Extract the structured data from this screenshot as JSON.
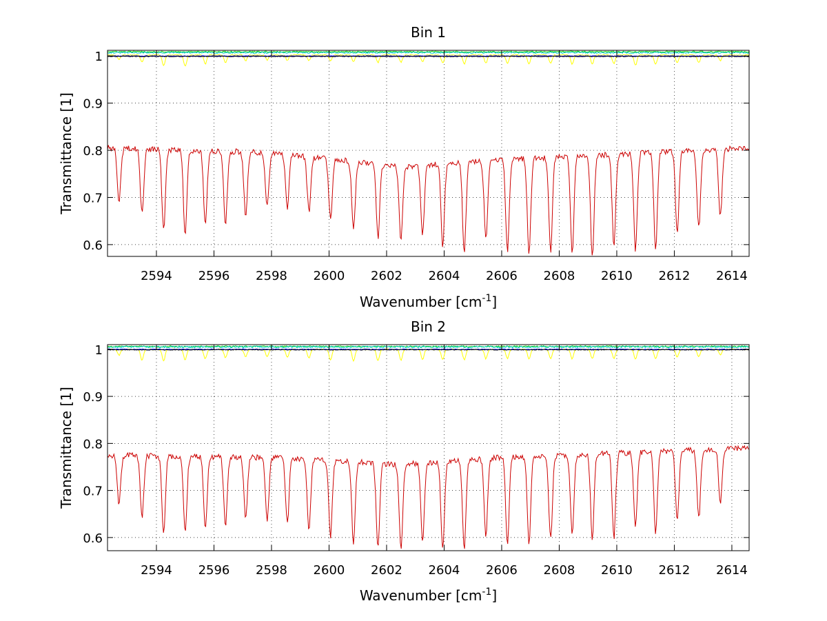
{
  "chart_data": [
    {
      "type": "line",
      "title": "Bin 1",
      "xlabel": "Wavenumber [cm",
      "xlabel_sup": "-1",
      "xlabel_end": "]",
      "ylabel": "Transmittance [1]",
      "xlim": [
        2592.3,
        2614.6
      ],
      "ylim": [
        0.575,
        1.012
      ],
      "grid": true,
      "xticks": [
        2594,
        2596,
        2598,
        2600,
        2602,
        2604,
        2606,
        2608,
        2610,
        2612,
        2614
      ],
      "xtick_labels": [
        "2594",
        "2596",
        "2598",
        "2600",
        "2602",
        "2604",
        "2606",
        "2608",
        "2610",
        "2612",
        "2614"
      ],
      "yticks": [
        0.6,
        0.7,
        0.8,
        0.9,
        1.0
      ],
      "ytick_labels": [
        "0.6",
        "0.7",
        "0.8",
        "0.9",
        "1"
      ],
      "series": [
        {
          "name": "red",
          "color": "#cc0000",
          "baseline_start": 0.805,
          "baseline_end": 0.805,
          "baseline_x": [
            2592.3,
            2598,
            2602.5,
            2606,
            2614.6
          ],
          "baseline_y": [
            0.805,
            0.795,
            0.765,
            0.78,
            0.805
          ],
          "line_centers": [
            2592.7,
            2593.5,
            2594.25,
            2595.0,
            2595.7,
            2596.4,
            2597.1,
            2597.85,
            2598.55,
            2599.3,
            2600.05,
            2600.85,
            2601.7,
            2602.5,
            2603.25,
            2603.95,
            2604.7,
            2605.45,
            2606.2,
            2606.95,
            2607.7,
            2608.45,
            2609.15,
            2609.9,
            2610.65,
            2611.35,
            2612.1,
            2612.85,
            2613.6
          ],
          "line_minima": [
            0.69,
            0.665,
            0.63,
            0.62,
            0.64,
            0.64,
            0.66,
            0.68,
            0.68,
            0.67,
            0.655,
            0.635,
            0.615,
            0.61,
            0.625,
            0.6,
            0.585,
            0.61,
            0.585,
            0.58,
            0.585,
            0.58,
            0.575,
            0.6,
            0.59,
            0.59,
            0.625,
            0.635,
            0.66
          ]
        },
        {
          "name": "yellow",
          "color": "#ffff00",
          "level": 1.002,
          "line_centers": [
            2592.7,
            2593.5,
            2594.25,
            2595.0,
            2595.7,
            2596.4,
            2597.1,
            2597.85,
            2598.55,
            2599.3,
            2600.05,
            2600.85,
            2601.7,
            2602.5,
            2603.25,
            2603.95,
            2604.7,
            2605.45,
            2606.2,
            2606.95,
            2607.7,
            2608.45,
            2609.15,
            2609.9,
            2610.65,
            2611.35,
            2612.1,
            2612.85,
            2613.6
          ],
          "line_minima": [
            0.993,
            0.988,
            0.98,
            0.978,
            0.983,
            0.986,
            0.99,
            0.991,
            0.99,
            0.99,
            0.989,
            0.988,
            0.986,
            0.986,
            0.987,
            0.985,
            0.983,
            0.985,
            0.984,
            0.983,
            0.984,
            0.983,
            0.983,
            0.983,
            0.98,
            0.982,
            0.985,
            0.986,
            0.99
          ]
        },
        {
          "name": "green",
          "color": "#00cc00",
          "level": 1.009,
          "noise": 0.0012
        },
        {
          "name": "cyan",
          "color": "#00cccc",
          "level": 1.007,
          "noise": 0.0015
        },
        {
          "name": "blue",
          "color": "#0000ff",
          "level": 1.0,
          "noise": 0.0006
        },
        {
          "name": "black",
          "color": "#000000",
          "level": 0.999,
          "noise": 0.0007
        }
      ]
    },
    {
      "type": "line",
      "title": "Bin 2",
      "xlabel": "Wavenumber [cm",
      "xlabel_sup": "-1",
      "xlabel_end": "]",
      "ylabel": "Transmittance [1]",
      "xlim": [
        2592.3,
        2614.6
      ],
      "ylim": [
        0.572,
        1.01
      ],
      "grid": true,
      "xticks": [
        2594,
        2596,
        2598,
        2600,
        2602,
        2604,
        2606,
        2608,
        2610,
        2612,
        2614
      ],
      "xtick_labels": [
        "2594",
        "2596",
        "2598",
        "2600",
        "2602",
        "2604",
        "2606",
        "2608",
        "2610",
        "2612",
        "2614"
      ],
      "yticks": [
        0.6,
        0.7,
        0.8,
        0.9,
        1.0
      ],
      "ytick_labels": [
        "0.6",
        "0.7",
        "0.8",
        "0.9",
        "1"
      ],
      "series": [
        {
          "name": "red",
          "color": "#cc0000",
          "baseline_x": [
            2592.3,
            2598,
            2602.5,
            2606,
            2614.6
          ],
          "baseline_y": [
            0.775,
            0.77,
            0.755,
            0.77,
            0.79
          ],
          "line_centers": [
            2592.7,
            2593.5,
            2594.25,
            2595.0,
            2595.7,
            2596.4,
            2597.1,
            2597.85,
            2598.55,
            2599.3,
            2600.05,
            2600.85,
            2601.7,
            2602.5,
            2603.25,
            2603.95,
            2604.7,
            2605.45,
            2606.2,
            2606.95,
            2607.7,
            2608.45,
            2609.15,
            2609.9,
            2610.65,
            2611.35,
            2612.1,
            2612.85,
            2613.6
          ],
          "line_minima": [
            0.672,
            0.64,
            0.612,
            0.61,
            0.62,
            0.625,
            0.64,
            0.635,
            0.63,
            0.615,
            0.6,
            0.59,
            0.58,
            0.578,
            0.59,
            0.572,
            0.578,
            0.605,
            0.59,
            0.59,
            0.595,
            0.605,
            0.6,
            0.6,
            0.62,
            0.61,
            0.64,
            0.64,
            0.675
          ]
        },
        {
          "name": "yellow",
          "color": "#ffff00",
          "level": 1.0,
          "line_centers": [
            2592.7,
            2593.5,
            2594.25,
            2595.0,
            2595.7,
            2596.4,
            2597.1,
            2597.85,
            2598.55,
            2599.3,
            2600.05,
            2600.85,
            2601.7,
            2602.5,
            2603.25,
            2603.95,
            2604.7,
            2605.45,
            2606.2,
            2606.95,
            2607.7,
            2608.45,
            2609.15,
            2609.9,
            2610.65,
            2611.35,
            2612.1,
            2612.85,
            2613.6
          ],
          "line_minima": [
            0.987,
            0.976,
            0.975,
            0.977,
            0.98,
            0.982,
            0.984,
            0.984,
            0.983,
            0.981,
            0.977,
            0.975,
            0.976,
            0.977,
            0.978,
            0.978,
            0.978,
            0.98,
            0.98,
            0.98,
            0.98,
            0.98,
            0.98,
            0.98,
            0.979,
            0.98,
            0.983,
            0.984,
            0.988
          ]
        },
        {
          "name": "green",
          "color": "#00cc00",
          "level": 1.006,
          "noise": 0.0015
        },
        {
          "name": "cyan",
          "color": "#00cccc",
          "level": 1.005,
          "noise": 0.002
        },
        {
          "name": "blue",
          "color": "#0000ff",
          "level": 1.0,
          "noise": 0.0008
        },
        {
          "name": "black",
          "color": "#000000",
          "level": 0.999,
          "noise": 0.0008
        }
      ]
    }
  ]
}
